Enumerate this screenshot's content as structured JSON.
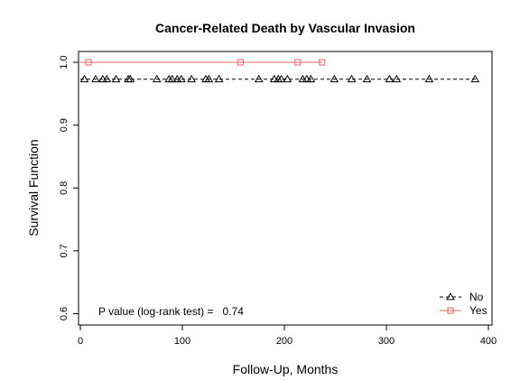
{
  "chart_data": {
    "type": "line",
    "title": "Cancer-Related Death by Vascular Invasion",
    "xlabel": "Follow-Up, Months",
    "ylabel": "Survival Function",
    "xlim": [
      0,
      400
    ],
    "ylim": [
      0.6,
      1.0
    ],
    "xticks": [
      "0",
      "100",
      "200",
      "300",
      "400"
    ],
    "yticks": [
      "0.6",
      "0.7",
      "0.8",
      "0.9",
      "1.0"
    ],
    "grid": false,
    "legend_position": "bottom-right",
    "annotation": "P value (log-rank test) =   0.74",
    "series": [
      {
        "name": "No",
        "color": "#000000",
        "line_style": "dashed",
        "marker": "triangle",
        "line": [
          [
            0,
            0.973
          ],
          [
            388,
            0.973
          ]
        ],
        "censor_x": [
          4,
          15,
          22,
          26,
          35,
          47,
          49,
          75,
          87,
          90,
          95,
          99,
          109,
          123,
          126,
          136,
          175,
          190,
          194,
          197,
          203,
          218,
          222,
          226,
          249,
          266,
          281,
          303,
          310,
          342,
          387
        ],
        "censor_y": 0.973
      },
      {
        "name": "Yes",
        "color": "#e8605f",
        "line_style": "solid",
        "marker": "square",
        "line": [
          [
            0,
            1.0
          ],
          [
            237,
            1.0
          ]
        ],
        "censor_x": [
          8,
          157,
          213,
          237
        ],
        "censor_y": 1.0
      }
    ]
  }
}
